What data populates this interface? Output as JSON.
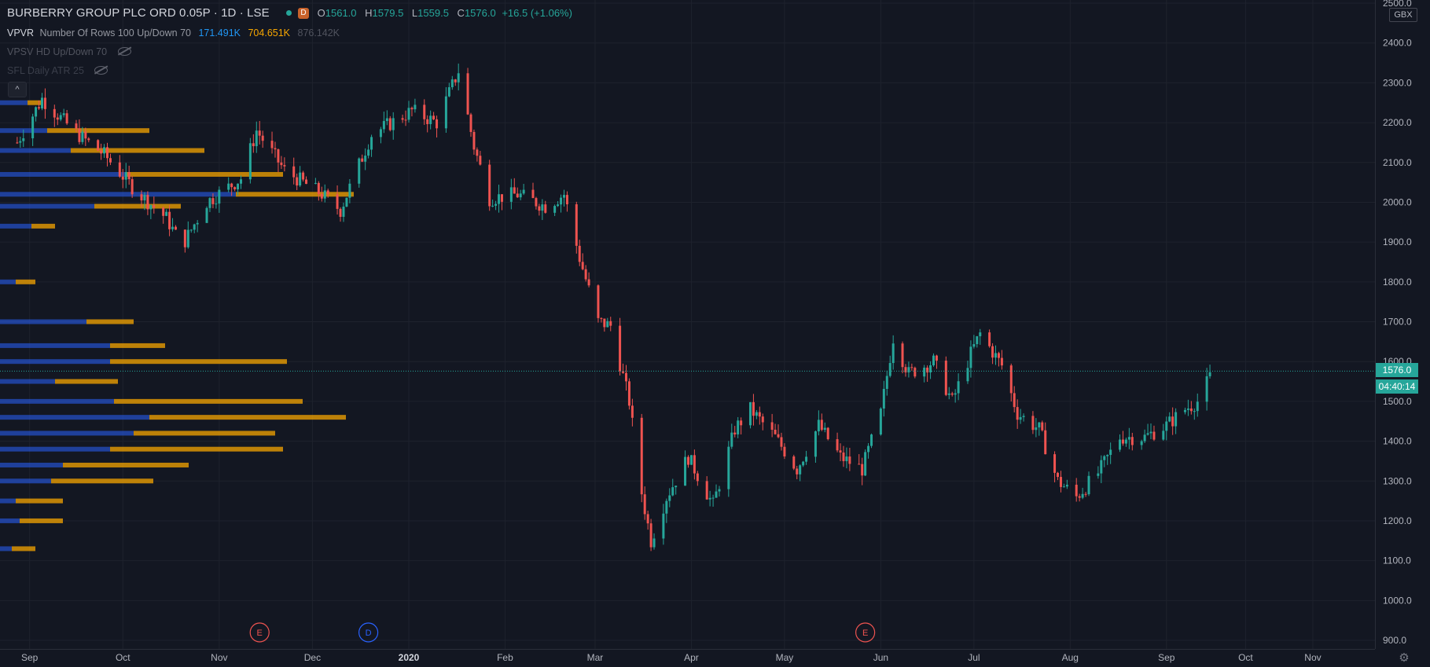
{
  "header": {
    "title": "BURBERRY GROUP PLC ORD 0.05P · 1D · LSE",
    "market_badge": "D",
    "ohlc": {
      "o_label": "O",
      "open": "1561.0",
      "h_label": "H",
      "high": "1579.5",
      "l_label": "L",
      "low": "1559.5",
      "c_label": "C",
      "close": "1576.0",
      "change": "+16.5 (+1.06%)"
    }
  },
  "indicators": {
    "vpvr": {
      "name": "VPVR",
      "params": "Number Of Rows 100 Up/Down 70",
      "up": "171.491K",
      "down": "704.651K",
      "total": "876.142K"
    },
    "vpsv": {
      "name": "VPSV HD Up/Down 70"
    },
    "atr": {
      "name": "SFL Daily ATR 25"
    }
  },
  "collapse_icon": "^",
  "price_axis": {
    "currency": "GBX",
    "last_price": "1576.0",
    "countdown": "04:40:14",
    "ticks": [
      "2500.0",
      "2400.0",
      "2300.0",
      "2200.0",
      "2100.0",
      "2000.0",
      "1900.0",
      "1800.0",
      "1700.0",
      "1600.0",
      "1500.0",
      "1400.0",
      "1300.0",
      "1200.0",
      "1100.0",
      "1000.0",
      "900.0"
    ]
  },
  "time_axis": {
    "ticks": [
      "Sep",
      "Oct",
      "Nov",
      "Dec",
      "2020",
      "Feb",
      "Mar",
      "Apr",
      "May",
      "Jun",
      "Jul",
      "Aug",
      "Sep",
      "Oct",
      "Nov"
    ]
  },
  "event_markers": [
    "E",
    "D",
    "E"
  ],
  "colors": {
    "background": "#131722",
    "up": "#26a69a",
    "down": "#ef5350",
    "vp_up": "#2962ff",
    "vp_down": "#f7a600",
    "grid": "#1e222d",
    "text": "#b2b5be"
  },
  "chart_data": {
    "type": "candlestick",
    "symbol": "BURBERRY GROUP PLC ORD 0.05P",
    "interval": "1D",
    "exchange": "LSE",
    "currency": "GBX",
    "ylim": [
      900,
      2500
    ],
    "last_price": 1576.0,
    "price_path": [
      {
        "date": "2019-08-28",
        "price": 2150
      },
      {
        "date": "2019-09-05",
        "price": 2260
      },
      {
        "date": "2019-09-15",
        "price": 2180
      },
      {
        "date": "2019-09-25",
        "price": 2120
      },
      {
        "date": "2019-10-05",
        "price": 2030
      },
      {
        "date": "2019-10-15",
        "price": 1960
      },
      {
        "date": "2019-10-20",
        "price": 1890
      },
      {
        "date": "2019-10-28",
        "price": 2000
      },
      {
        "date": "2019-11-08",
        "price": 2060
      },
      {
        "date": "2019-11-13",
        "price": 2180
      },
      {
        "date": "2019-11-22",
        "price": 2080
      },
      {
        "date": "2019-12-04",
        "price": 2020
      },
      {
        "date": "2019-12-10",
        "price": 1980
      },
      {
        "date": "2019-12-20",
        "price": 2170
      },
      {
        "date": "2020-01-02",
        "price": 2230
      },
      {
        "date": "2020-01-10",
        "price": 2200
      },
      {
        "date": "2020-01-17",
        "price": 2330
      },
      {
        "date": "2020-01-22",
        "price": 2140
      },
      {
        "date": "2020-01-27",
        "price": 2010
      },
      {
        "date": "2020-02-05",
        "price": 2020
      },
      {
        "date": "2020-02-14",
        "price": 1990
      },
      {
        "date": "2020-02-20",
        "price": 2020
      },
      {
        "date": "2020-02-25",
        "price": 1860
      },
      {
        "date": "2020-03-02",
        "price": 1700
      },
      {
        "date": "2020-03-06",
        "price": 1690
      },
      {
        "date": "2020-03-12",
        "price": 1500
      },
      {
        "date": "2020-03-16",
        "price": 1270
      },
      {
        "date": "2020-03-19",
        "price": 1150
      },
      {
        "date": "2020-03-24",
        "price": 1260
      },
      {
        "date": "2020-03-31",
        "price": 1360
      },
      {
        "date": "2020-04-08",
        "price": 1240
      },
      {
        "date": "2020-04-15",
        "price": 1430
      },
      {
        "date": "2020-04-20",
        "price": 1480
      },
      {
        "date": "2020-04-28",
        "price": 1410
      },
      {
        "date": "2020-05-05",
        "price": 1330
      },
      {
        "date": "2020-05-12",
        "price": 1440
      },
      {
        "date": "2020-05-19",
        "price": 1360
      },
      {
        "date": "2020-05-26",
        "price": 1330
      },
      {
        "date": "2020-06-01",
        "price": 1470
      },
      {
        "date": "2020-06-05",
        "price": 1660
      },
      {
        "date": "2020-06-10",
        "price": 1570
      },
      {
        "date": "2020-06-18",
        "price": 1600
      },
      {
        "date": "2020-06-24",
        "price": 1500
      },
      {
        "date": "2020-06-30",
        "price": 1620
      },
      {
        "date": "2020-07-03",
        "price": 1670
      },
      {
        "date": "2020-07-10",
        "price": 1590
      },
      {
        "date": "2020-07-15",
        "price": 1470
      },
      {
        "date": "2020-07-22",
        "price": 1430
      },
      {
        "date": "2020-07-28",
        "price": 1300
      },
      {
        "date": "2020-08-03",
        "price": 1260
      },
      {
        "date": "2020-08-10",
        "price": 1320
      },
      {
        "date": "2020-08-17",
        "price": 1410
      },
      {
        "date": "2020-08-25",
        "price": 1410
      },
      {
        "date": "2020-09-01",
        "price": 1440
      },
      {
        "date": "2020-09-07",
        "price": 1480
      },
      {
        "date": "2020-09-11",
        "price": 1500
      },
      {
        "date": "2020-09-16",
        "price": 1576
      }
    ],
    "volume_profile": {
      "rows_shown": [
        {
          "price": 2250,
          "up": 35,
          "down": 20
        },
        {
          "price": 2180,
          "up": 60,
          "down": 130
        },
        {
          "price": 2130,
          "up": 90,
          "down": 170
        },
        {
          "price": 2070,
          "up": 160,
          "down": 200
        },
        {
          "price": 2020,
          "up": 300,
          "down": 150
        },
        {
          "price": 1990,
          "up": 120,
          "down": 110
        },
        {
          "price": 1940,
          "up": 40,
          "down": 30
        },
        {
          "price": 1800,
          "up": 20,
          "down": 25
        },
        {
          "price": 1700,
          "up": 110,
          "down": 60
        },
        {
          "price": 1640,
          "up": 140,
          "down": 70
        },
        {
          "price": 1600,
          "up": 140,
          "down": 225
        },
        {
          "price": 1550,
          "up": 70,
          "down": 80
        },
        {
          "price": 1500,
          "up": 145,
          "down": 240
        },
        {
          "price": 1460,
          "up": 190,
          "down": 250
        },
        {
          "price": 1420,
          "up": 170,
          "down": 180
        },
        {
          "price": 1380,
          "up": 140,
          "down": 220
        },
        {
          "price": 1340,
          "up": 80,
          "down": 160
        },
        {
          "price": 1300,
          "up": 65,
          "down": 130
        },
        {
          "price": 1250,
          "up": 20,
          "down": 60
        },
        {
          "price": 1200,
          "up": 25,
          "down": 55
        },
        {
          "price": 1130,
          "up": 15,
          "down": 30
        }
      ]
    },
    "events": [
      {
        "label": "E",
        "date": "2019-11-14",
        "color": "#ef5350"
      },
      {
        "label": "D",
        "date": "2019-12-19",
        "color": "#2962ff"
      },
      {
        "label": "E",
        "date": "2020-05-27",
        "color": "#ef5350"
      }
    ]
  }
}
